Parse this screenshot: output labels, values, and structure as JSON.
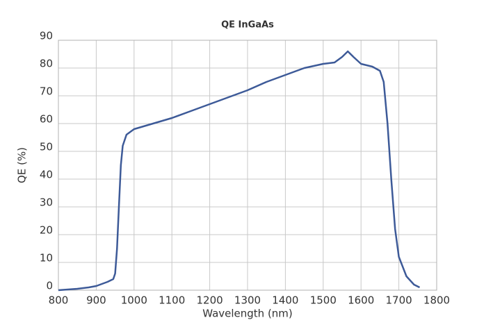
{
  "chart_data": {
    "type": "line",
    "title": "QE InGaAs",
    "x_label": "Wavelength (nm)",
    "y_label": "QE (%)",
    "x": [
      800,
      850,
      880,
      900,
      930,
      945,
      950,
      955,
      960,
      965,
      970,
      980,
      1000,
      1050,
      1100,
      1150,
      1200,
      1250,
      1300,
      1350,
      1400,
      1450,
      1500,
      1530,
      1550,
      1565,
      1580,
      1600,
      1630,
      1650,
      1660,
      1670,
      1680,
      1690,
      1700,
      1720,
      1740,
      1755
    ],
    "series": [
      {
        "name": "QE",
        "color": "#3d5a98",
        "values": [
          0,
          0.5,
          1,
          1.5,
          3,
          4,
          6,
          15,
          30,
          45,
          52,
          56,
          58,
          60,
          62,
          64.5,
          67,
          69.5,
          72,
          75,
          77.5,
          80,
          81.5,
          82,
          84,
          86,
          84,
          81.5,
          80.5,
          79,
          75,
          60,
          40,
          22,
          12,
          5,
          2,
          1
        ]
      }
    ],
    "xlim": [
      800,
      1800
    ],
    "xticks": [
      800,
      900,
      1000,
      1100,
      1200,
      1300,
      1400,
      1500,
      1600,
      1700,
      1800
    ],
    "ylim": [
      0,
      90
    ],
    "yticks": [
      0,
      10,
      20,
      30,
      40,
      50,
      60,
      70,
      80,
      90
    ],
    "grid": true
  }
}
